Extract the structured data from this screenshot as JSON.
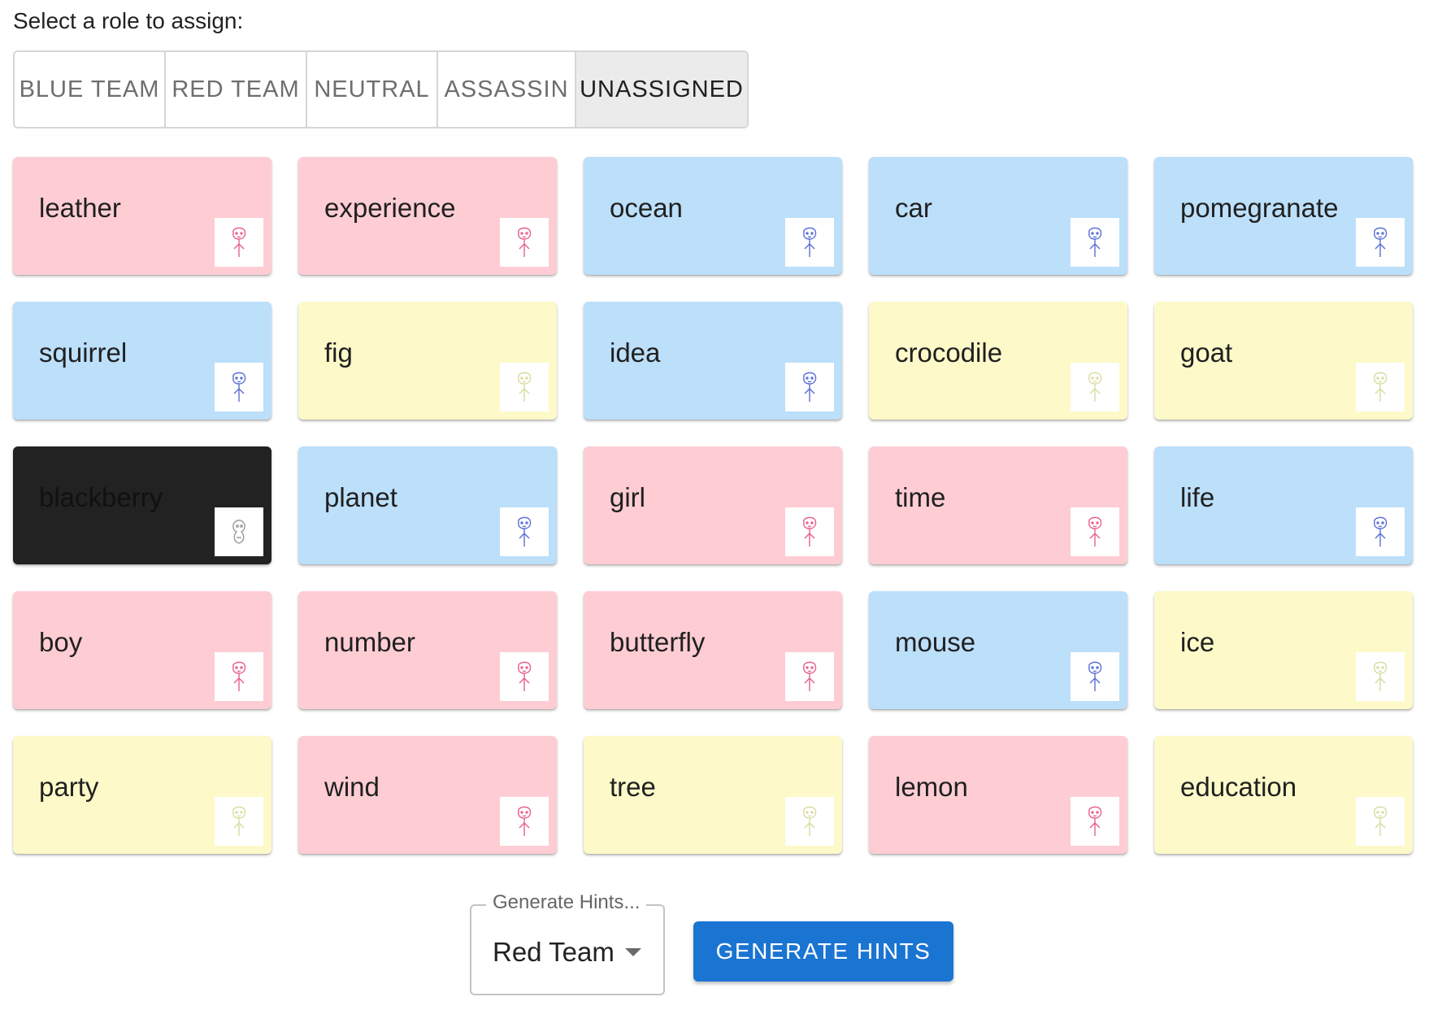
{
  "prompt": "Select a role to assign:",
  "roles": {
    "blue": "BLUE TEAM",
    "red": "RED TEAM",
    "neutral": "NEUTRAL",
    "assassin": "ASSASSIN",
    "unassigned": "UNASSIGNED",
    "selected": "unassigned"
  },
  "colors": {
    "red": "#fecdd4",
    "blue": "#bcdffa",
    "neutral": "#fdf9c9",
    "assassin": "#222222",
    "primary": "#1a74d2"
  },
  "cards": [
    {
      "word": "leather",
      "role": "red",
      "icon": "red-agent-sketch-icon"
    },
    {
      "word": "experience",
      "role": "red",
      "icon": "red-agent-sketch-icon"
    },
    {
      "word": "ocean",
      "role": "blue",
      "icon": "blue-agent-sketch-icon"
    },
    {
      "word": "car",
      "role": "blue",
      "icon": "blue-agent-sketch-icon"
    },
    {
      "word": "pomegranate",
      "role": "blue",
      "icon": "blue-agent-sketch-icon"
    },
    {
      "word": "squirrel",
      "role": "blue",
      "icon": "blue-agent-sketch-icon"
    },
    {
      "word": "fig",
      "role": "neutral",
      "icon": "neutral-sketch-icon"
    },
    {
      "word": "idea",
      "role": "blue",
      "icon": "blue-agent-sketch-icon"
    },
    {
      "word": "crocodile",
      "role": "neutral",
      "icon": "neutral-sketch-icon"
    },
    {
      "word": "goat",
      "role": "neutral",
      "icon": "neutral-sketch-icon"
    },
    {
      "word": "blackberry",
      "role": "assassin",
      "icon": "assassin-sketch-icon"
    },
    {
      "word": "planet",
      "role": "blue",
      "icon": "blue-agent-sketch-icon"
    },
    {
      "word": "girl",
      "role": "red",
      "icon": "red-agent-sketch-icon"
    },
    {
      "word": "time",
      "role": "red",
      "icon": "red-agent-sketch-icon"
    },
    {
      "word": "life",
      "role": "blue",
      "icon": "blue-agent-sketch-icon"
    },
    {
      "word": "boy",
      "role": "red",
      "icon": "red-agent-sketch-icon"
    },
    {
      "word": "number",
      "role": "red",
      "icon": "red-agent-sketch-icon"
    },
    {
      "word": "butterfly",
      "role": "red",
      "icon": "red-agent-sketch-icon"
    },
    {
      "word": "mouse",
      "role": "blue",
      "icon": "blue-agent-sketch-icon"
    },
    {
      "word": "ice",
      "role": "neutral",
      "icon": "neutral-sketch-icon"
    },
    {
      "word": "party",
      "role": "neutral",
      "icon": "neutral-sketch-icon"
    },
    {
      "word": "wind",
      "role": "red",
      "icon": "red-agent-sketch-icon"
    },
    {
      "word": "tree",
      "role": "neutral",
      "icon": "neutral-sketch-icon"
    },
    {
      "word": "lemon",
      "role": "red",
      "icon": "red-agent-sketch-icon"
    },
    {
      "word": "education",
      "role": "neutral",
      "icon": "neutral-sketch-icon"
    }
  ],
  "hints": {
    "select_label": "Generate Hints...",
    "select_value": "Red Team",
    "button_label": "GENERATE HINTS"
  }
}
